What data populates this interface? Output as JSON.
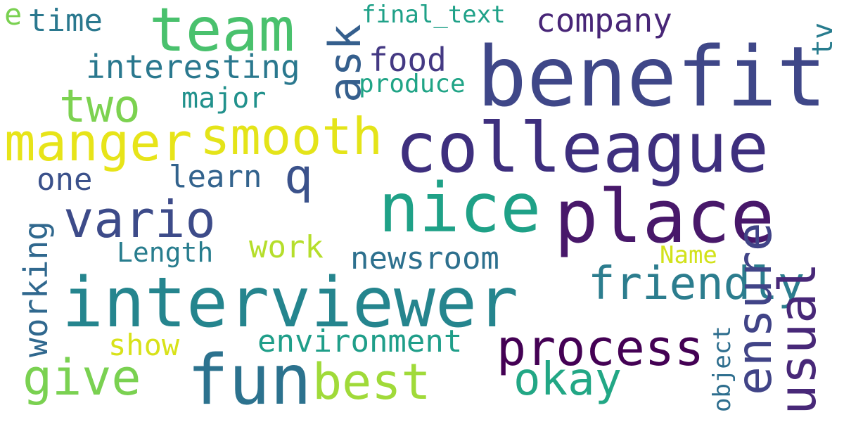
{
  "words": [
    {
      "text": "benefit",
      "color": "#3f4788"
    },
    {
      "text": "colleague",
      "color": "#3e2f7e"
    },
    {
      "text": "team",
      "color": "#49c16d"
    },
    {
      "text": "nice",
      "color": "#1fa187"
    },
    {
      "text": "place",
      "color": "#48186a"
    },
    {
      "text": "interviewer",
      "color": "#25858e"
    },
    {
      "text": "fun",
      "color": "#2c728e"
    },
    {
      "text": "manger",
      "color": "#e7e419"
    },
    {
      "text": "smooth",
      "color": "#e4e419"
    },
    {
      "text": "vario",
      "color": "#3d4b89"
    },
    {
      "text": "process",
      "color": "#440154"
    },
    {
      "text": "friendly",
      "color": "#2c7d8e"
    },
    {
      "text": "usual",
      "color": "#482878"
    },
    {
      "text": "okay",
      "color": "#22a785"
    },
    {
      "text": "ensure",
      "color": "#414487"
    },
    {
      "text": "best",
      "color": "#a0da39"
    },
    {
      "text": "give",
      "color": "#7ad151"
    },
    {
      "text": "two",
      "color": "#7cd250"
    },
    {
      "text": "ask",
      "color": "#355f8d"
    },
    {
      "text": "q",
      "color": "#3b528b"
    },
    {
      "text": "company",
      "color": "#482677"
    },
    {
      "text": "interesting",
      "color": "#2a788e"
    },
    {
      "text": "food",
      "color": "#443983"
    },
    {
      "text": "time",
      "color": "#2a788e"
    },
    {
      "text": "major",
      "color": "#21918c"
    },
    {
      "text": "produce",
      "color": "#20a486"
    },
    {
      "text": "final_text",
      "color": "#1fa188"
    },
    {
      "text": "learn",
      "color": "#33638d"
    },
    {
      "text": "one",
      "color": "#3b518b"
    },
    {
      "text": "working",
      "color": "#30688e"
    },
    {
      "text": "work",
      "color": "#b5de2b"
    },
    {
      "text": "Length",
      "color": "#287d8e"
    },
    {
      "text": "newsroom",
      "color": "#2d708e"
    },
    {
      "text": "environment",
      "color": "#1f9e89"
    },
    {
      "text": "show",
      "color": "#d8e219"
    },
    {
      "text": "Name",
      "color": "#d2e21b"
    },
    {
      "text": "object",
      "color": "#2e6e8e"
    },
    {
      "text": "tv",
      "color": "#287c8e"
    },
    {
      "text": "e",
      "color": "#7ad151"
    }
  ]
}
